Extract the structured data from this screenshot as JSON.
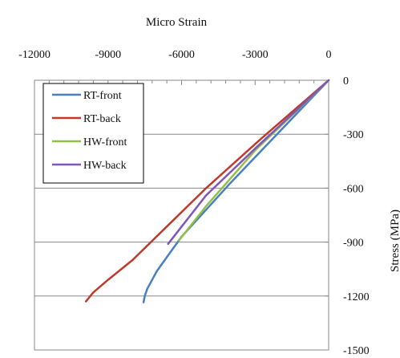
{
  "chart_data": {
    "type": "line",
    "title": "",
    "xlabel": "Micro Strain",
    "ylabel": "Stress (MPa)",
    "x_axis_position": "top",
    "y_axis_position": "right",
    "xlim": [
      -12000,
      0
    ],
    "ylim": [
      -1500,
      0
    ],
    "xticks": [
      -12000,
      -9000,
      -6000,
      -3000,
      0
    ],
    "yticks": [
      0,
      -300,
      -600,
      -900,
      -1200,
      -1500
    ],
    "grid": "horizontal",
    "legend_position": "top-left",
    "series": [
      {
        "name": "RT-front",
        "color": "#4a7fc1",
        "x": [
          0,
          -4000,
          -6000,
          -7000,
          -7400,
          -7500,
          -7550
        ],
        "y": [
          0,
          -570,
          -870,
          -1060,
          -1160,
          -1200,
          -1235
        ]
      },
      {
        "name": "RT-back",
        "color": "#c0392b",
        "x": [
          0,
          -2800,
          -5000,
          -6500,
          -8000,
          -9000,
          -9600,
          -9900
        ],
        "y": [
          0,
          -330,
          -600,
          -800,
          -1000,
          -1110,
          -1180,
          -1230
        ]
      },
      {
        "name": "HW-front",
        "color": "#92c047",
        "x": [
          0,
          -3000,
          -5000,
          -6100
        ],
        "y": [
          0,
          -390,
          -700,
          -890
        ]
      },
      {
        "name": "HW-back",
        "color": "#7e57b8",
        "x": [
          0,
          -3000,
          -5000,
          -6550
        ],
        "y": [
          0,
          -380,
          -640,
          -910
        ]
      }
    ]
  }
}
